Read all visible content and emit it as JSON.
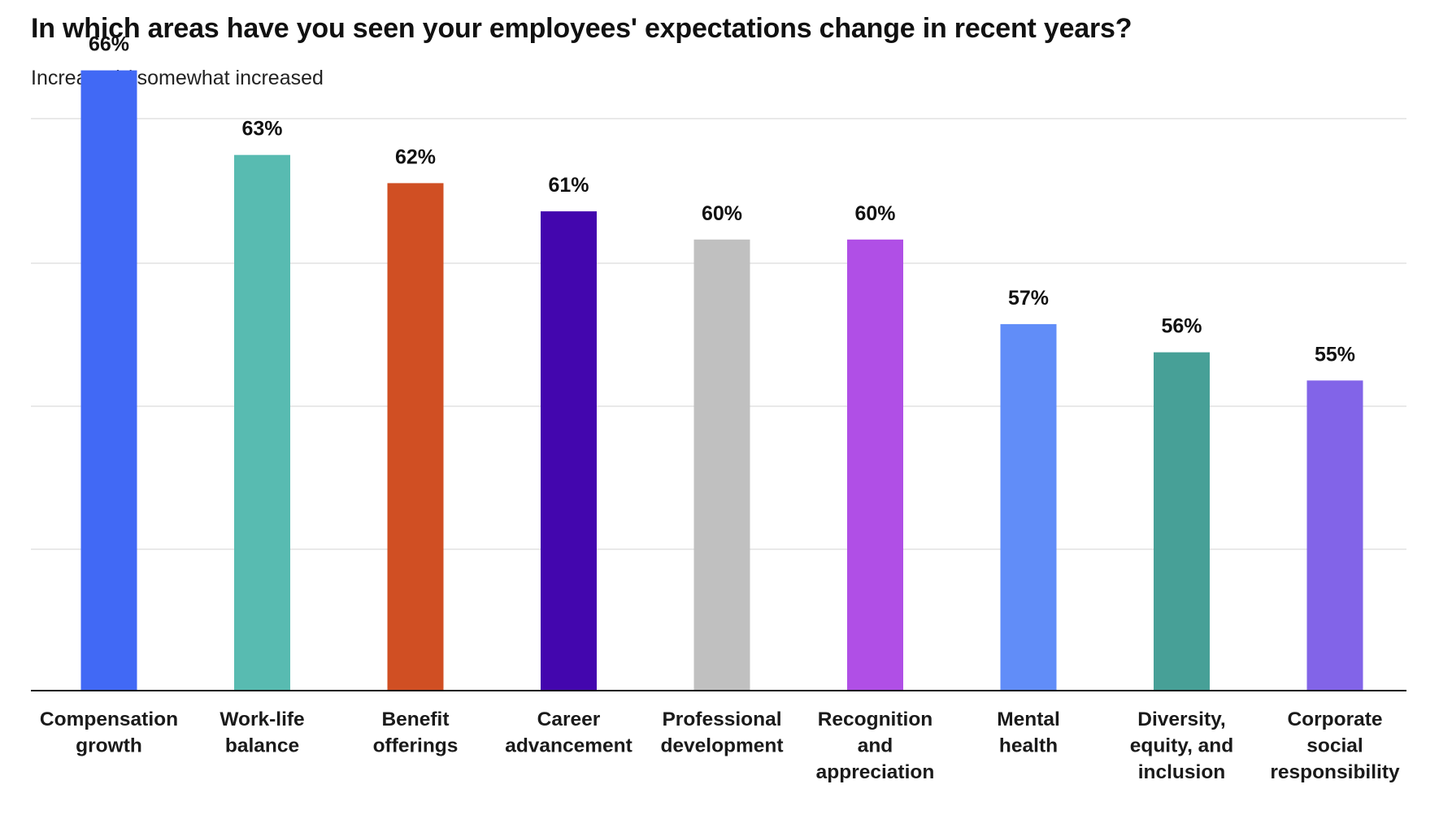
{
  "chart_data": {
    "type": "bar",
    "title": "In which areas have you seen your employees' expectations change in recent years?",
    "subtitle": "Increased / somewhat increased",
    "xlabel": "",
    "ylabel": "",
    "value_suffix": "%",
    "ylim": [
      44,
      72
    ],
    "grid": true,
    "legend": "none",
    "categories": [
      [
        "Compensation",
        "growth"
      ],
      [
        "Work-life",
        "balance"
      ],
      [
        "Benefit",
        "offerings"
      ],
      [
        "Career",
        "advancement"
      ],
      [
        "Professional",
        "development"
      ],
      [
        "Recognition",
        "and",
        "appreciation"
      ],
      [
        "Mental",
        "health"
      ],
      [
        "Diversity,",
        "equity, and",
        "inclusion"
      ],
      [
        "Corporate",
        "social",
        "responsibility"
      ]
    ],
    "values": [
      66,
      63,
      62,
      61,
      60,
      60,
      57,
      56,
      55
    ],
    "colors": [
      "#4169f5",
      "#58bbb1",
      "#d04f23",
      "#4306ae",
      "#c0c0c0",
      "#b04fe6",
      "#618df8",
      "#47a097",
      "#8264e8"
    ],
    "gridline_color": "#e2e2e2",
    "axis_color": "#111111"
  }
}
